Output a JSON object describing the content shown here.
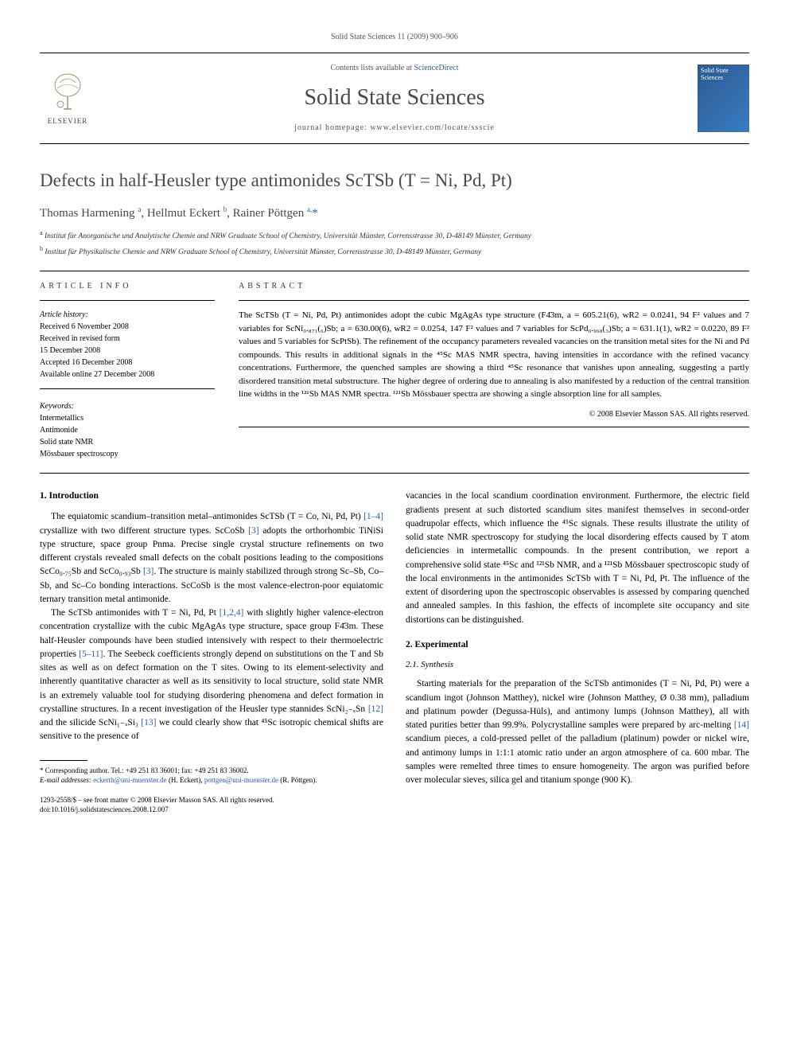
{
  "header": {
    "citation": "Solid State Sciences 11 (2009) 900–906",
    "contents_prefix": "Contents lists available at ",
    "contents_link": "ScienceDirect",
    "journal_name": "Solid State Sciences",
    "homepage_prefix": "journal homepage: ",
    "homepage_url": "www.elsevier.com/locate/ssscie",
    "elsevier_label": "ELSEVIER",
    "cover_text": "Solid State Sciences"
  },
  "article": {
    "title": "Defects in half-Heusler type antimonides ScTSb (T = Ni, Pd, Pt)",
    "authors_html": "Thomas Harmening <sup>a</sup>, Hellmut Eckert <sup>b</sup>, Rainer Pöttgen <sup>a,</sup><span class='star'>*</span>",
    "affiliations": [
      {
        "sup": "a",
        "text": "Institut für Anorganische und Analytische Chemie and NRW Graduate School of Chemistry, Universität Münster, Corrensstrasse 30, D-48149 Münster, Germany"
      },
      {
        "sup": "b",
        "text": "Institut für Physikalische Chemie and NRW Graduate School of Chemistry, Universität Münster, Corrensstrasse 30, D-48149 Münster, Germany"
      }
    ]
  },
  "info": {
    "article_info_head": "ARTICLE INFO",
    "abstract_head": "ABSTRACT",
    "history_label": "Article history:",
    "history": [
      "Received 6 November 2008",
      "Received in revised form",
      "15 December 2008",
      "Accepted 16 December 2008",
      "Available online 27 December 2008"
    ],
    "keywords_label": "Keywords:",
    "keywords": [
      "Intermetallics",
      "Antimonide",
      "Solid state NMR",
      "Mössbauer spectroscopy"
    ],
    "abstract": "The ScTSb (T = Ni, Pd, Pt) antimonides adopt the cubic MgAgAs type structure (F4̄3m, a = 605.21(6), wR2 = 0.0241, 94 F² values and 7 variables for ScNi₀.₈₇₁(₆)Sb; a = 630.00(6), wR2 = 0.0254, 147 F² values and 7 variables for ScPd₀.₉₆₈(₃)Sb; a = 631.1(1), wR2 = 0.0220, 89 F² values and 5 variables for ScPtSb). The refinement of the occupancy parameters revealed vacancies on the transition metal sites for the Ni and Pd compounds. This results in additional signals in the ⁴⁵Sc MAS NMR spectra, having intensities in accordance with the refined vacancy concentrations. Furthermore, the quenched samples are showing a third ⁴⁵Sc resonance that vanishes upon annealing, suggesting a partly disordered transition metal substructure. The higher degree of ordering due to annealing is also manifested by a reduction of the central transition line widths in the ¹²¹Sb MAS NMR spectra. ¹²¹Sb Mössbauer spectra are showing a single absorption line for all samples.",
    "copyright": "© 2008 Elsevier Masson SAS. All rights reserved."
  },
  "body": {
    "left": {
      "section1_head": "1. Introduction",
      "p1": "The equiatomic scandium–transition metal–antimonides ScTSb (T = Co, Ni, Pd, Pt) [1–4] crystallize with two different structure types. ScCoSb [3] adopts the orthorhombic TiNiSi type structure, space group Pnma. Precise single crystal structure refinements on two different crystals revealed small defects on the cobalt positions leading to the compositions ScCo₀.₇₅Sb and ScCo₀.₉₃Sb [3]. The structure is mainly stabilized through strong Sc–Sb, Co–Sb, and Sc–Co bonding interactions. ScCoSb is the most valence-electron-poor equiatomic ternary transition metal antimonide.",
      "p2": "The ScTSb antimonides with T = Ni, Pd, Pt [1,2,4] with slightly higher valence-electron concentration crystallize with the cubic MgAgAs type structure, space group F4̄3m. These half-Heusler compounds have been studied intensively with respect to their thermoelectric properties [5–11]. The Seebeck coefficients strongly depend on substitutions on the T and Sb sites as well as on defect formation on the T sites. Owing to its element-selectivity and inherently quantitative character as well as its sensitivity to local structure, solid state NMR is an extremely valuable tool for studying disordering phenomena and defect formation in crystalline structures. In a recent investigation of the Heusler type stannides ScNi₂₋ₓSn [12] and the silicide ScNi₁₋ₓSi₃ [13] we could clearly show that ⁴⁵Sc isotropic chemical shifts are sensitive to the presence of"
    },
    "right": {
      "p3": "vacancies in the local scandium coordination environment. Furthermore, the electric field gradients present at such distorted scandium sites manifest themselves in second-order quadrupolar effects, which influence the ⁴⁵Sc signals. These results illustrate the utility of solid state NMR spectroscopy for studying the local disordering effects caused by T atom deficiencies in intermetallic compounds. In the present contribution, we report a comprehensive solid state ⁴⁵Sc and ¹²¹Sb NMR, and a ¹²¹Sb Mössbauer spectroscopic study of the local environments in the antimonides ScTSb with T = Ni, Pd, Pt. The influence of the extent of disordering upon the spectroscopic observables is assessed by comparing quenched and annealed samples. In this fashion, the effects of incomplete site occupancy and site distortions can be distinguished.",
      "section2_head": "2. Experimental",
      "section21_head": "2.1. Synthesis",
      "p4": "Starting materials for the preparation of the ScTSb antimonides (T = Ni, Pd, Pt) were a scandium ingot (Johnson Matthey), nickel wire (Johnson Matthey, Ø 0.38 mm), palladium and platinum powder (Degussa-Hüls), and antimony lumps (Johnson Matthey), all with stated purities better than 99.9%. Polycrystalline samples were prepared by arc-melting [14] scandium pieces, a cold-pressed pellet of the palladium (platinum) powder or nickel wire, and antimony lumps in 1:1:1 atomic ratio under an argon atmosphere of ca. 600 mbar. The samples were remelted three times to ensure homogeneity. The argon was purified before over molecular sieves, silica gel and titanium sponge (900 K)."
    }
  },
  "footnote": {
    "corr": "* Corresponding author. Tel.: +49 251 83 36001; fax: +49 251 83 36002.",
    "email_label": "E-mail addresses:",
    "email1": "eckerth@uni-muenster.de",
    "email1_name": "(H. Eckert),",
    "email2": "pottgen@uni-muenster.de",
    "email2_name": "(R. Pöttgen)."
  },
  "footer": {
    "line1": "1293-2558/$ – see front matter © 2008 Elsevier Masson SAS. All rights reserved.",
    "line2": "doi:10.1016/j.solidstatesciences.2008.12.007"
  },
  "colors": {
    "link": "#2a5db0",
    "heading": "#4a4a4a",
    "text": "#000000",
    "muted": "#555555",
    "cover_bg_start": "#2b5a8f",
    "cover_bg_end": "#3a7bc4"
  },
  "typography": {
    "body_pt": 11.5,
    "title_pt": 23,
    "journal_pt": 28,
    "abstract_pt": 11,
    "footnote_pt": 9
  }
}
